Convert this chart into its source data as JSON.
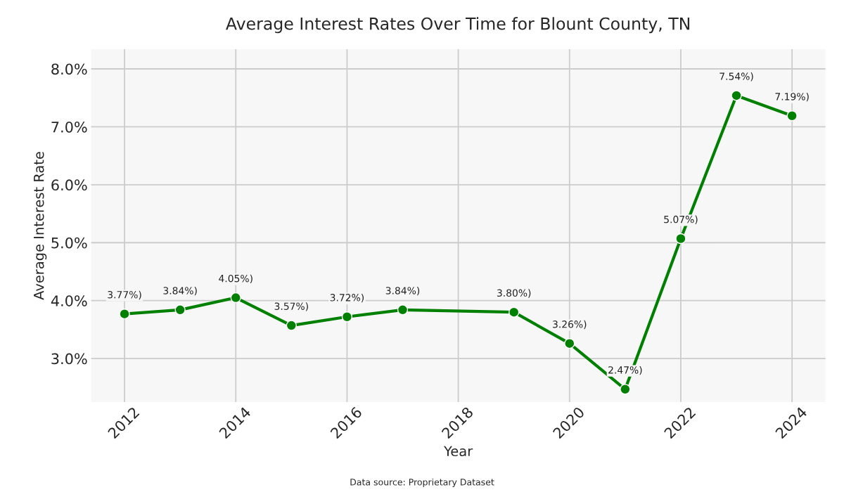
{
  "chart_data": {
    "type": "line",
    "title": "Average Interest Rates Over Time for Blount County, TN",
    "xlabel": "Year",
    "ylabel": "Average Interest Rate",
    "x": [
      2012,
      2013,
      2014,
      2015,
      2016,
      2017,
      2019,
      2020,
      2021,
      2022,
      2023,
      2024
    ],
    "series": [
      {
        "color": "#008000",
        "values": [
          3.77,
          3.84,
          4.05,
          3.57,
          3.72,
          3.84,
          3.8,
          3.26,
          2.47,
          5.07,
          7.54,
          7.19
        ],
        "value_labels": [
          "3.77%)",
          "3.84%)",
          "4.05%)",
          "3.57%)",
          "3.72%)",
          "3.84%)",
          "3.80%)",
          "3.26%)",
          "2.47%)",
          "5.07%)",
          "7.54%)",
          "7.19%)"
        ]
      }
    ],
    "xlim": [
      2011.4,
      2024.6
    ],
    "xticks": [
      2012,
      2014,
      2016,
      2018,
      2020,
      2022,
      2024
    ],
    "ylim": [
      2.25,
      8.34
    ],
    "yticks": [
      {
        "value": 3,
        "label": "3.0%"
      },
      {
        "value": 4,
        "label": "4.0%"
      },
      {
        "value": 5,
        "label": "5.0%"
      },
      {
        "value": 6,
        "label": "6.0%"
      },
      {
        "value": 7,
        "label": "7.0%"
      },
      {
        "value": 8,
        "label": "8.0%"
      }
    ],
    "grid": true,
    "marker": "circle",
    "line_style": "solid",
    "annotations": [
      "Data source: Proprietary Dataset"
    ]
  }
}
